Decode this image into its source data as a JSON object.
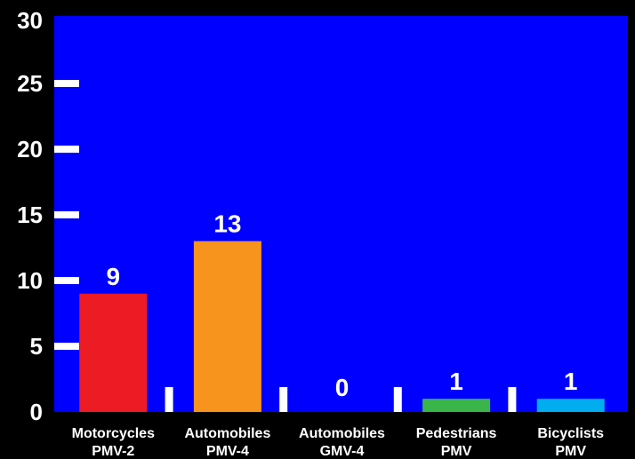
{
  "chart_data": {
    "type": "bar",
    "title": "",
    "xlabel": "",
    "ylabel": "",
    "ylim": [
      0,
      30
    ],
    "yticks": [
      0,
      5,
      10,
      15,
      20,
      25,
      30
    ],
    "grid": false,
    "legend": "none",
    "categories": [
      [
        "Motorcycles",
        "PMV-2"
      ],
      [
        "Automobiles",
        "PMV-4"
      ],
      [
        "Automobiles",
        "GMV-4"
      ],
      [
        "Pedestrians",
        "PMV"
      ],
      [
        "Bicyclists",
        "PMV"
      ]
    ],
    "values": [
      9,
      13,
      0,
      1,
      1
    ],
    "data_labels": [
      "9",
      "13",
      "0",
      "1",
      "1"
    ],
    "bar_colors": [
      "#ed1c24",
      "#f7941d",
      "#0000ff",
      "#39b54a",
      "#00aeef"
    ],
    "plot_background": "#0000ff",
    "page_background": "#000000",
    "text_color": "#ffffff"
  }
}
